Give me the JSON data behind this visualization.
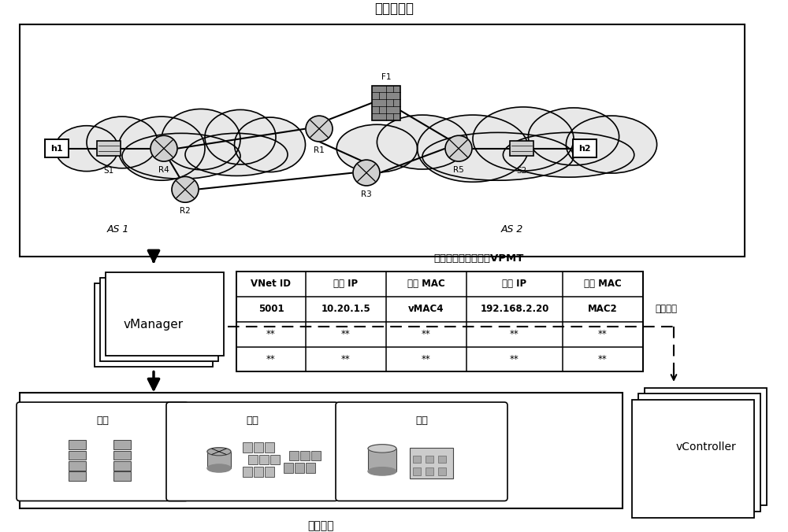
{
  "title_top": "待仿真网络",
  "title_vpmt": "虚拟与物理映射信息VPMT",
  "title_physical": "物理资源",
  "label_vmanager": "vManager",
  "label_vcontroller": "vController",
  "label_compute": "计算",
  "label_network": "网络",
  "label_storage": "存储",
  "label_example": "示例条目",
  "table_headers": [
    "VNet ID",
    "虚拟 IP",
    "虚拟 MAC",
    "物理 IP",
    "物理 MAC"
  ],
  "table_row1": [
    "5001",
    "10.20.1.5",
    "vMAC4",
    "192.168.2.20",
    "MAC2"
  ],
  "table_row2": [
    "**",
    "**",
    "**",
    "**",
    "**"
  ],
  "table_row3": [
    "**",
    "**",
    "**",
    "**",
    "**"
  ],
  "as1_label": "AS 1",
  "as2_label": "AS 2",
  "bg_color": "#ffffff"
}
